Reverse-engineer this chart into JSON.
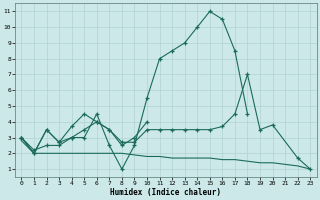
{
  "xlabel": "Humidex (Indice chaleur)",
  "bg_color": "#cce8e8",
  "line_color": "#1a6b5a",
  "grid_color": "#aacece",
  "xlim": [
    -0.5,
    23.5
  ],
  "ylim": [
    0.5,
    11.5
  ],
  "xticks": [
    0,
    1,
    2,
    3,
    4,
    5,
    6,
    7,
    8,
    9,
    10,
    11,
    12,
    13,
    14,
    15,
    16,
    17,
    18,
    19,
    20,
    21,
    22,
    23
  ],
  "yticks": [
    1,
    2,
    3,
    4,
    5,
    6,
    7,
    8,
    9,
    10,
    11
  ],
  "line1_x": [
    0,
    1,
    2,
    3,
    4,
    5,
    6,
    7,
    8,
    9,
    10,
    11,
    12,
    13,
    14,
    15,
    16,
    17,
    18
  ],
  "line1_y": [
    3,
    2,
    3.5,
    2.7,
    3,
    3,
    4.5,
    2.5,
    1,
    2.5,
    5.5,
    8,
    8.5,
    9,
    10,
    11,
    10.5,
    8.5,
    4.5
  ],
  "line2_x": [
    0,
    1,
    2,
    3,
    4,
    5,
    6,
    7,
    8,
    9,
    10
  ],
  "line2_y": [
    3,
    2,
    3.5,
    2.7,
    3.7,
    4.5,
    4,
    3.5,
    2.5,
    3,
    4
  ],
  "line3_x": [
    0,
    1,
    2,
    3,
    4,
    5,
    6,
    7,
    8,
    9,
    10,
    11,
    12,
    13,
    14,
    15,
    16,
    17,
    18,
    19,
    20,
    22,
    23
  ],
  "line3_y": [
    3,
    2.2,
    2.5,
    2.5,
    3,
    3.5,
    4,
    3.5,
    2.7,
    2.7,
    3.5,
    3.5,
    3.5,
    3.5,
    3.5,
    3.5,
    3.7,
    4.5,
    7,
    3.5,
    3.8,
    1.7,
    1
  ],
  "line4_x": [
    0,
    1,
    2,
    3,
    4,
    5,
    6,
    7,
    8,
    9,
    10,
    11,
    12,
    13,
    14,
    15,
    16,
    17,
    18,
    19,
    20,
    21,
    22,
    23
  ],
  "line4_y": [
    2.8,
    2.0,
    2.0,
    2.0,
    2.0,
    2.0,
    2.0,
    2.0,
    2.0,
    1.9,
    1.8,
    1.8,
    1.7,
    1.7,
    1.7,
    1.7,
    1.6,
    1.6,
    1.5,
    1.4,
    1.4,
    1.3,
    1.2,
    1.0
  ]
}
